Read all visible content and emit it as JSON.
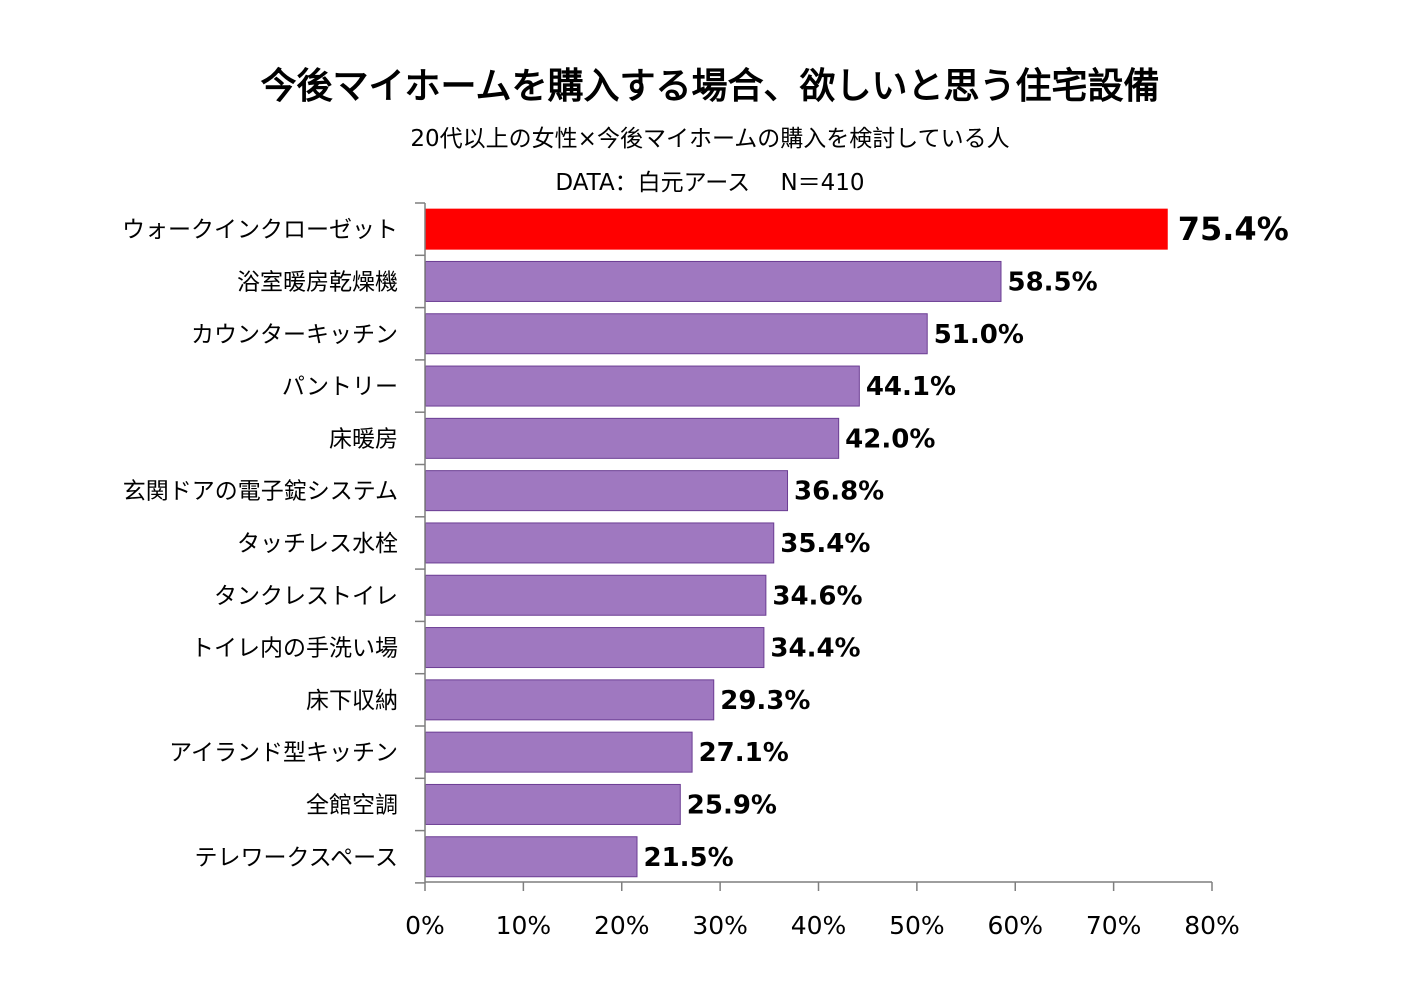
{
  "chart_data": {
    "type": "bar",
    "orientation": "horizontal",
    "title": "今後マイホームを購入する場合、欲しいと思う住宅設備",
    "subtitle": "20代以上の女性×今後マイホームの購入を検討している人",
    "source_line": "DATA：白元アース　 N＝410",
    "categories": [
      "ウォークインクローゼット",
      "浴室暖房乾燥機",
      "カウンターキッチン",
      "パントリー",
      "床暖房",
      "玄関ドアの電子錠システム",
      "タッチレス水栓",
      "タンクレストイレ",
      "トイレ内の手洗い場",
      "床下収納",
      "アイランド型キッチン",
      "全館空調",
      "テレワークスペース"
    ],
    "values": [
      75.4,
      58.5,
      51.0,
      44.1,
      42.0,
      36.8,
      35.4,
      34.6,
      34.4,
      29.3,
      27.1,
      25.9,
      21.5
    ],
    "value_labels": [
      "75.4%",
      "58.5%",
      "51.0%",
      "44.1%",
      "42.0%",
      "36.8%",
      "35.4%",
      "34.6%",
      "34.4%",
      "29.3%",
      "27.1%",
      "25.9%",
      "21.5%"
    ],
    "highlight_index": 0,
    "xlim": [
      0,
      80
    ],
    "xticks": [
      0,
      10,
      20,
      30,
      40,
      50,
      60,
      70,
      80
    ],
    "xtick_labels": [
      "0%",
      "10%",
      "20%",
      "30%",
      "40%",
      "50%",
      "60%",
      "70%",
      "80%"
    ],
    "xlabel": "",
    "ylabel": "",
    "grid": false,
    "legend": "none",
    "colors": {
      "bar": "#9f78c0",
      "bar_border": "#6b3d93",
      "highlight_bar": "#ff0000",
      "highlight_text": "#ff0000",
      "text": "#000000",
      "axis": "#7f7f7f"
    }
  }
}
